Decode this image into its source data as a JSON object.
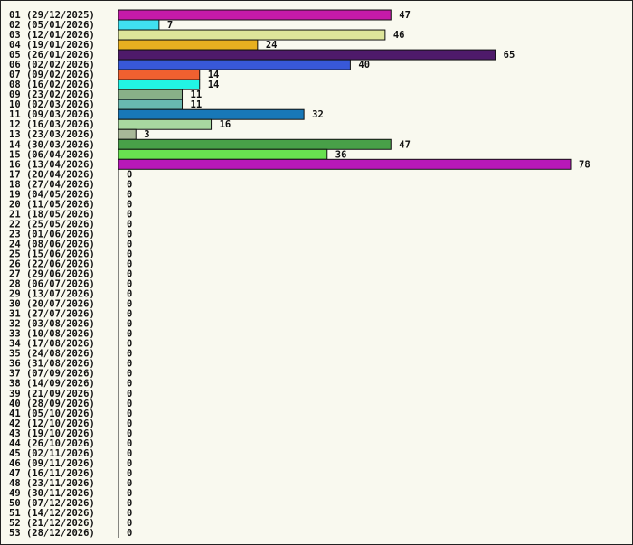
{
  "chart_data": {
    "type": "bar",
    "orientation": "horizontal",
    "grid": false,
    "legend": "none",
    "xlim": [
      0,
      78
    ],
    "categories": [
      "01 (29/12/2025)",
      "02 (05/01/2026)",
      "03 (12/01/2026)",
      "04 (19/01/2026)",
      "05 (26/01/2026)",
      "06 (02/02/2026)",
      "07 (09/02/2026)",
      "08 (16/02/2026)",
      "09 (23/02/2026)",
      "10 (02/03/2026)",
      "11 (09/03/2026)",
      "12 (16/03/2026)",
      "13 (23/03/2026)",
      "14 (30/03/2026)",
      "15 (06/04/2026)",
      "16 (13/04/2026)",
      "17 (20/04/2026)",
      "18 (27/04/2026)",
      "19 (04/05/2026)",
      "20 (11/05/2026)",
      "21 (18/05/2026)",
      "22 (25/05/2026)",
      "23 (01/06/2026)",
      "24 (08/06/2026)",
      "25 (15/06/2026)",
      "26 (22/06/2026)",
      "27 (29/06/2026)",
      "28 (06/07/2026)",
      "29 (13/07/2026)",
      "30 (20/07/2026)",
      "31 (27/07/2026)",
      "32 (03/08/2026)",
      "33 (10/08/2026)",
      "34 (17/08/2026)",
      "35 (24/08/2026)",
      "36 (31/08/2026)",
      "37 (07/09/2026)",
      "38 (14/09/2026)",
      "39 (21/09/2026)",
      "40 (28/09/2026)",
      "41 (05/10/2026)",
      "42 (12/10/2026)",
      "43 (19/10/2026)",
      "44 (26/10/2026)",
      "45 (02/11/2026)",
      "46 (09/11/2026)",
      "47 (16/11/2026)",
      "48 (23/11/2026)",
      "49 (30/11/2026)",
      "50 (07/12/2026)",
      "51 (14/12/2026)",
      "52 (21/12/2026)",
      "53 (28/12/2026)"
    ],
    "values": [
      47,
      7,
      46,
      24,
      65,
      40,
      14,
      14,
      11,
      11,
      32,
      16,
      3,
      47,
      36,
      78,
      0,
      0,
      0,
      0,
      0,
      0,
      0,
      0,
      0,
      0,
      0,
      0,
      0,
      0,
      0,
      0,
      0,
      0,
      0,
      0,
      0,
      0,
      0,
      0,
      0,
      0,
      0,
      0,
      0,
      0,
      0,
      0,
      0,
      0,
      0,
      0,
      0
    ],
    "colors": [
      "#c41aa8",
      "#40e0f0",
      "#dde59a",
      "#e8b020",
      "#4e1a6a",
      "#3858d8",
      "#f06030",
      "#22f4e4",
      "#88b088",
      "#68b8b0",
      "#1878b8",
      "#a8d8a0",
      "#a8b898",
      "#48a048",
      "#68e050",
      "#b818b8"
    ]
  }
}
